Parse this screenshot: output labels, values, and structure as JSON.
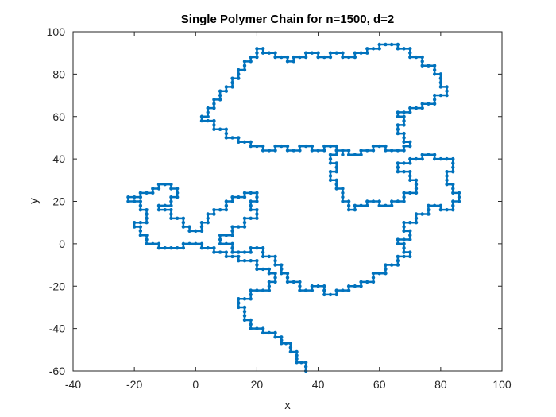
{
  "chart_data": {
    "type": "line",
    "title": "Single Polymer Chain for n=1500, d=2",
    "xlabel": "x",
    "ylabel": "y",
    "xlim": [
      -40,
      100
    ],
    "ylim": [
      -60,
      100
    ],
    "x_ticks": [
      "-40",
      "-20",
      "0",
      "20",
      "40",
      "60",
      "80",
      "100"
    ],
    "y_ticks": [
      "-60",
      "-40",
      "-20",
      "0",
      "20",
      "40",
      "60",
      "80",
      "100"
    ],
    "grid": false,
    "box": true,
    "marker": "filled-dot",
    "series": [
      {
        "color": "#0072BD",
        "points": [
          [
            36,
            -60
          ],
          [
            36,
            -56
          ],
          [
            33,
            -56
          ],
          [
            33,
            -51
          ],
          [
            31,
            -51
          ],
          [
            31,
            -47
          ],
          [
            28,
            -47
          ],
          [
            28,
            -44
          ],
          [
            26,
            -44
          ],
          [
            26,
            -42
          ],
          [
            22,
            -42
          ],
          [
            22,
            -40
          ],
          [
            18,
            -40
          ],
          [
            18,
            -36
          ],
          [
            16,
            -36
          ],
          [
            16,
            -30
          ],
          [
            14,
            -30
          ],
          [
            14,
            -26
          ],
          [
            18,
            -26
          ],
          [
            18,
            -22
          ],
          [
            24,
            -22
          ],
          [
            24,
            -18
          ],
          [
            26,
            -18
          ],
          [
            26,
            -14
          ],
          [
            24,
            -14
          ],
          [
            24,
            -12
          ],
          [
            20,
            -12
          ],
          [
            20,
            -8
          ],
          [
            14,
            -8
          ],
          [
            14,
            -6
          ],
          [
            10,
            -6
          ],
          [
            10,
            -4
          ],
          [
            6,
            -4
          ],
          [
            6,
            -2
          ],
          [
            2,
            -2
          ],
          [
            2,
            0
          ],
          [
            -4,
            0
          ],
          [
            -4,
            -2
          ],
          [
            -12,
            -2
          ],
          [
            -12,
            0
          ],
          [
            -16,
            0
          ],
          [
            -16,
            4
          ],
          [
            -18,
            4
          ],
          [
            -18,
            8
          ],
          [
            -20,
            8
          ],
          [
            -20,
            10
          ],
          [
            -16,
            10
          ],
          [
            -16,
            16
          ],
          [
            -18,
            16
          ],
          [
            -18,
            20
          ],
          [
            -22,
            20
          ],
          [
            -22,
            22
          ],
          [
            -18,
            22
          ],
          [
            -18,
            24
          ],
          [
            -14,
            24
          ],
          [
            -14,
            26
          ],
          [
            -12,
            26
          ],
          [
            -12,
            28
          ],
          [
            -8,
            28
          ],
          [
            -8,
            26
          ],
          [
            -6,
            26
          ],
          [
            -6,
            22
          ],
          [
            -8,
            22
          ],
          [
            -8,
            18
          ],
          [
            -12,
            18
          ],
          [
            -12,
            16
          ],
          [
            -8,
            16
          ],
          [
            -8,
            12
          ],
          [
            -4,
            12
          ],
          [
            -4,
            8
          ],
          [
            -2,
            8
          ],
          [
            -2,
            6
          ],
          [
            2,
            6
          ],
          [
            2,
            10
          ],
          [
            4,
            10
          ],
          [
            4,
            14
          ],
          [
            6,
            14
          ],
          [
            6,
            16
          ],
          [
            10,
            16
          ],
          [
            10,
            20
          ],
          [
            12,
            20
          ],
          [
            12,
            22
          ],
          [
            16,
            22
          ],
          [
            16,
            24
          ],
          [
            20,
            24
          ],
          [
            20,
            20
          ],
          [
            18,
            20
          ],
          [
            18,
            16
          ],
          [
            20,
            16
          ],
          [
            20,
            12
          ],
          [
            16,
            12
          ],
          [
            16,
            8
          ],
          [
            12,
            8
          ],
          [
            12,
            4
          ],
          [
            8,
            4
          ],
          [
            8,
            0
          ],
          [
            12,
            0
          ],
          [
            12,
            -4
          ],
          [
            18,
            -4
          ],
          [
            18,
            -2
          ],
          [
            22,
            -2
          ],
          [
            22,
            -6
          ],
          [
            26,
            -6
          ],
          [
            26,
            -10
          ],
          [
            28,
            -10
          ],
          [
            28,
            -14
          ],
          [
            30,
            -14
          ],
          [
            30,
            -18
          ],
          [
            34,
            -18
          ],
          [
            34,
            -22
          ],
          [
            38,
            -22
          ],
          [
            38,
            -20
          ],
          [
            42,
            -20
          ],
          [
            42,
            -24
          ],
          [
            46,
            -24
          ],
          [
            46,
            -22
          ],
          [
            50,
            -22
          ],
          [
            50,
            -20
          ],
          [
            54,
            -20
          ],
          [
            54,
            -18
          ],
          [
            58,
            -18
          ],
          [
            58,
            -14
          ],
          [
            62,
            -14
          ],
          [
            62,
            -10
          ],
          [
            66,
            -10
          ],
          [
            66,
            -6
          ],
          [
            70,
            -6
          ],
          [
            70,
            -4
          ],
          [
            68,
            -4
          ],
          [
            68,
            0
          ],
          [
            66,
            0
          ],
          [
            66,
            2
          ],
          [
            70,
            2
          ],
          [
            70,
            6
          ],
          [
            68,
            6
          ],
          [
            68,
            10
          ],
          [
            72,
            10
          ],
          [
            72,
            14
          ],
          [
            76,
            14
          ],
          [
            76,
            18
          ],
          [
            80,
            18
          ],
          [
            80,
            16
          ],
          [
            84,
            16
          ],
          [
            84,
            20
          ],
          [
            86,
            20
          ],
          [
            86,
            24
          ],
          [
            84,
            24
          ],
          [
            84,
            28
          ],
          [
            82,
            28
          ],
          [
            82,
            34
          ],
          [
            84,
            34
          ],
          [
            84,
            40
          ],
          [
            78,
            40
          ],
          [
            78,
            42
          ],
          [
            74,
            42
          ],
          [
            74,
            40
          ],
          [
            70,
            40
          ],
          [
            70,
            38
          ],
          [
            66,
            38
          ],
          [
            66,
            34
          ],
          [
            70,
            34
          ],
          [
            70,
            30
          ],
          [
            72,
            30
          ],
          [
            72,
            24
          ],
          [
            68,
            24
          ],
          [
            68,
            20
          ],
          [
            64,
            20
          ],
          [
            64,
            18
          ],
          [
            60,
            18
          ],
          [
            60,
            20
          ],
          [
            56,
            20
          ],
          [
            56,
            18
          ],
          [
            52,
            18
          ],
          [
            52,
            16
          ],
          [
            50,
            16
          ],
          [
            50,
            20
          ],
          [
            48,
            20
          ],
          [
            48,
            26
          ],
          [
            46,
            26
          ],
          [
            46,
            30
          ],
          [
            44,
            30
          ],
          [
            44,
            34
          ],
          [
            46,
            34
          ],
          [
            46,
            38
          ],
          [
            44,
            38
          ],
          [
            44,
            42
          ],
          [
            46,
            42
          ],
          [
            46,
            44
          ],
          [
            50,
            44
          ],
          [
            50,
            42
          ],
          [
            54,
            42
          ],
          [
            54,
            44
          ],
          [
            58,
            44
          ],
          [
            58,
            46
          ],
          [
            62,
            46
          ],
          [
            62,
            44
          ],
          [
            68,
            44
          ],
          [
            68,
            46
          ],
          [
            70,
            46
          ],
          [
            70,
            48
          ],
          [
            68,
            48
          ],
          [
            68,
            52
          ],
          [
            66,
            52
          ],
          [
            66,
            56
          ],
          [
            68,
            56
          ],
          [
            68,
            60
          ],
          [
            66,
            60
          ],
          [
            66,
            62
          ],
          [
            70,
            62
          ],
          [
            70,
            64
          ],
          [
            74,
            64
          ],
          [
            74,
            66
          ],
          [
            78,
            66
          ],
          [
            78,
            70
          ],
          [
            82,
            70
          ],
          [
            82,
            74
          ],
          [
            80,
            74
          ],
          [
            80,
            80
          ],
          [
            78,
            80
          ],
          [
            78,
            84
          ],
          [
            74,
            84
          ],
          [
            74,
            88
          ],
          [
            70,
            88
          ],
          [
            70,
            92
          ],
          [
            66,
            92
          ],
          [
            66,
            94
          ],
          [
            60,
            94
          ],
          [
            60,
            92
          ],
          [
            56,
            92
          ],
          [
            56,
            90
          ],
          [
            52,
            90
          ],
          [
            52,
            88
          ],
          [
            48,
            88
          ],
          [
            48,
            90
          ],
          [
            44,
            90
          ],
          [
            44,
            88
          ],
          [
            40,
            88
          ],
          [
            40,
            90
          ],
          [
            36,
            90
          ],
          [
            36,
            88
          ],
          [
            32,
            88
          ],
          [
            32,
            86
          ],
          [
            30,
            86
          ],
          [
            30,
            88
          ],
          [
            26,
            88
          ],
          [
            26,
            90
          ],
          [
            22,
            90
          ],
          [
            22,
            92
          ],
          [
            20,
            92
          ],
          [
            20,
            88
          ],
          [
            18,
            88
          ],
          [
            18,
            86
          ],
          [
            16,
            86
          ],
          [
            16,
            82
          ],
          [
            14,
            82
          ],
          [
            14,
            78
          ],
          [
            12,
            78
          ],
          [
            12,
            74
          ],
          [
            10,
            74
          ],
          [
            10,
            72
          ],
          [
            8,
            72
          ],
          [
            8,
            68
          ],
          [
            6,
            68
          ],
          [
            6,
            64
          ],
          [
            4,
            64
          ],
          [
            4,
            60
          ],
          [
            2,
            60
          ],
          [
            2,
            58
          ],
          [
            6,
            58
          ],
          [
            6,
            54
          ],
          [
            10,
            54
          ],
          [
            10,
            50
          ],
          [
            14,
            50
          ],
          [
            14,
            48
          ],
          [
            18,
            48
          ],
          [
            18,
            46
          ],
          [
            22,
            46
          ],
          [
            22,
            44
          ],
          [
            26,
            44
          ],
          [
            26,
            46
          ],
          [
            30,
            46
          ],
          [
            30,
            44
          ],
          [
            34,
            44
          ],
          [
            34,
            46
          ],
          [
            38,
            46
          ],
          [
            38,
            44
          ],
          [
            42,
            44
          ],
          [
            42,
            46
          ],
          [
            46,
            46
          ],
          [
            46,
            44
          ],
          [
            48,
            44
          ],
          [
            48,
            42
          ]
        ]
      }
    ]
  }
}
